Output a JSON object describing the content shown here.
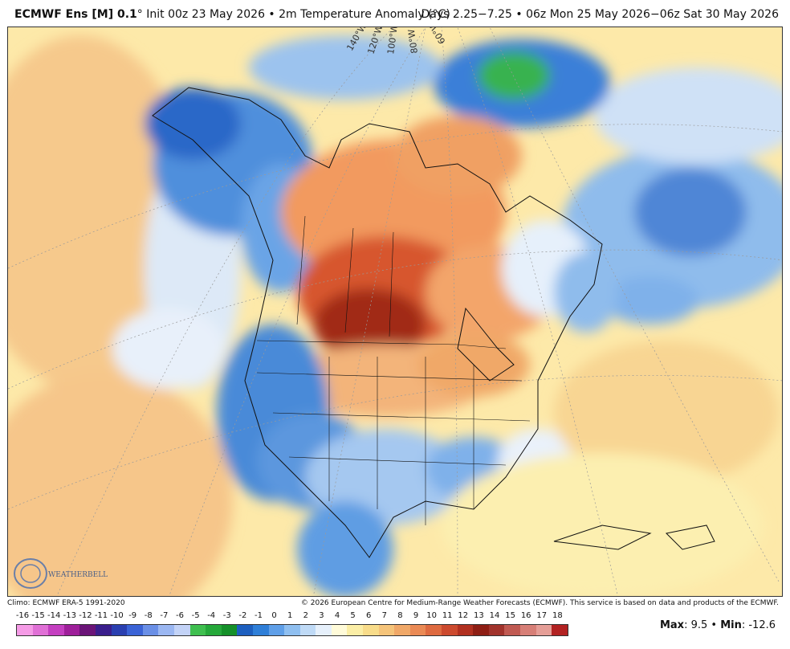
{
  "header": {
    "model": "ECMWF Ens [M] 0.1",
    "degree": "°",
    "init": " Init 00z 23 May 2026 • 2m Temperature Anomaly (°C)",
    "valid": "Days 2.25−7.25 • 06z Mon 25 May 2026−06z Sat 30 May 2026"
  },
  "map": {
    "longitude_labels": [
      "140°W",
      "120°W",
      "100°W",
      "80°W",
      "60°W"
    ],
    "logo_text": "WEATHERBELL"
  },
  "footer": {
    "climo": "Climo: ECMWF ERA-5 1991-2020",
    "copyright": "© 2026 European Centre for Medium-Range Weather Forecasts (ECMWF). This service is based on data and products of the ECMWF."
  },
  "colorbar": {
    "labels": [
      "-16",
      "-15",
      "-14",
      "-13",
      "-12",
      "-11",
      "-10",
      "-9",
      "-8",
      "-7",
      "-6",
      "-5",
      "-4",
      "-3",
      "-2",
      "-1",
      "0",
      "1",
      "2",
      "3",
      "4",
      "5",
      "6",
      "7",
      "8",
      "9",
      "10",
      "11",
      "12",
      "13",
      "14",
      "15",
      "16",
      "17",
      "18"
    ],
    "colors": [
      "#f59be6",
      "#e070d6",
      "#c43fc0",
      "#9e1f9a",
      "#6b1478",
      "#3a1e8c",
      "#2a3fb0",
      "#3b63d6",
      "#6a8fe6",
      "#9bb7f2",
      "#c3d3f7",
      "#3fbf4f",
      "#25a83a",
      "#15902a",
      "#1d5fbf",
      "#2f7fd8",
      "#5f9fe8",
      "#8fbff0",
      "#bfdaf6",
      "#e6f0fb",
      "#fffbd9",
      "#fbeea6",
      "#f8dc8a",
      "#f5c47a",
      "#f0a868",
      "#ea8a55",
      "#de6a40",
      "#cc4a2e",
      "#b13020",
      "#8e1e14",
      "#a1332c",
      "#c05a52",
      "#d77f77",
      "#e59e97",
      "#b22222"
    ],
    "label_start_x": 12,
    "label_step": 19.6
  },
  "stats": {
    "max_label": "Max",
    "max_value": ": 9.5 • ",
    "min_label": "Min",
    "min_value": ": -12.6"
  }
}
